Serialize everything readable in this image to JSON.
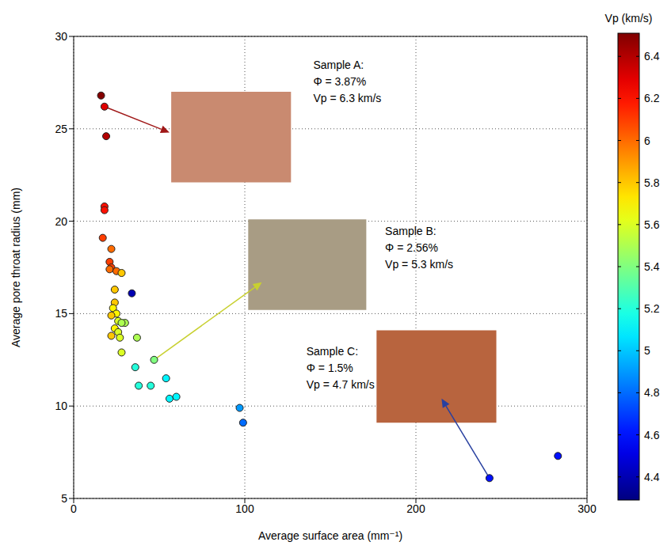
{
  "chart_data": {
    "type": "scatter",
    "x_label": "Average surface area (mm⁻¹)",
    "y_label": "Average pore throat radius (mm)",
    "x": [
      16,
      18,
      19,
      18,
      18,
      17,
      22,
      21,
      22,
      21,
      25,
      28,
      34,
      24,
      24,
      23,
      25,
      22,
      26,
      30,
      28,
      24,
      26,
      22,
      27,
      37,
      28,
      36,
      47,
      38,
      45,
      54,
      56,
      60,
      97,
      99,
      243,
      283
    ],
    "y": [
      26.8,
      26.2,
      24.6,
      20.8,
      20.6,
      19.1,
      18.5,
      17.8,
      17.5,
      17.4,
      17.3,
      17.2,
      16.1,
      16.3,
      15.6,
      15.3,
      15.0,
      14.9,
      14.6,
      14.5,
      14.5,
      14.2,
      14.0,
      13.8,
      13.7,
      13.7,
      12.9,
      12.1,
      12.5,
      11.1,
      11.1,
      11.5,
      10.4,
      10.5,
      9.9,
      9.1,
      6.1,
      7.3
    ],
    "vp": [
      6.5,
      6.3,
      6.4,
      6.2,
      6.2,
      6.1,
      6.0,
      6.1,
      6.1,
      6.0,
      6.0,
      5.8,
      4.4,
      5.8,
      5.8,
      5.7,
      5.7,
      5.8,
      5.6,
      5.5,
      5.5,
      5.7,
      5.6,
      5.8,
      5.6,
      5.5,
      5.6,
      5.2,
      5.4,
      5.2,
      5.2,
      5.1,
      5.1,
      5.1,
      4.9,
      4.8,
      4.6,
      4.6
    ],
    "xlim": [
      0,
      300
    ],
    "xticks": [
      0,
      100,
      200,
      300
    ],
    "ylim": [
      5,
      30
    ],
    "yticks": [
      5,
      10,
      15,
      20,
      25,
      30
    ],
    "grid": true,
    "colorbar": {
      "label": "Vp (km/s)",
      "range": [
        4.29,
        6.51
      ],
      "ticks": [
        4.4,
        4.6,
        4.8,
        5,
        5.2,
        5.4,
        5.6,
        5.8,
        6,
        6.2,
        6.4
      ]
    },
    "annotations": [
      {
        "lines": [
          "Sample A:",
          "Φ = 3.87%",
          "Vp = 6.3 km/s"
        ]
      },
      {
        "lines": [
          "Sample B:",
          "Φ = 2.56%",
          "Vp = 5.3 km/s"
        ]
      },
      {
        "lines": [
          "Sample C:",
          "Φ = 1.5%",
          "Vp = 4.7 km/s"
        ]
      }
    ]
  }
}
